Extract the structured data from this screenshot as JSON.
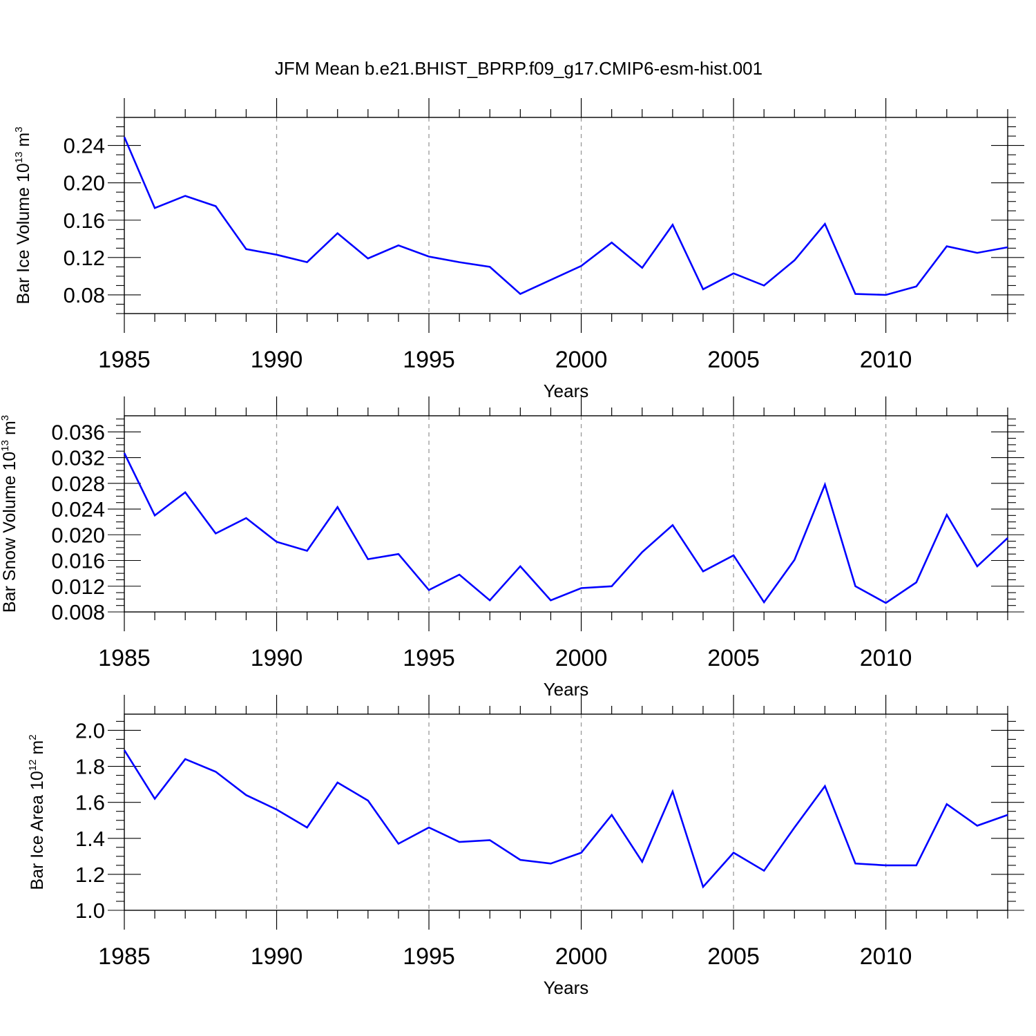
{
  "figure_title": "JFM Mean b.e21.BHIST_BPRP.f09_g17.CMIP6-esm-hist.001",
  "line_color": "#0000ff",
  "gridline_color": "#999999",
  "chart_data": [
    {
      "type": "line",
      "title": "JFM Mean b.e21.BHIST_BPRP.f09_g17.CMIP6-esm-hist.001",
      "xlabel": "Years",
      "ylabel": {
        "text": "Bar Ice Volume 10",
        "sup": "13",
        "text2": " m",
        "sup2": "3"
      },
      "xlim": [
        1985,
        2014
      ],
      "ylim": [
        0.06,
        0.27
      ],
      "xticks": [
        1985,
        1990,
        1995,
        2000,
        2005,
        2010
      ],
      "yticks": [
        "0.08",
        "0.12",
        "0.16",
        "0.20",
        "0.24"
      ],
      "grid": "vertical-dashed",
      "series": [
        {
          "x": [
            1985,
            1986,
            1987,
            1988,
            1989,
            1990,
            1991,
            1992,
            1993,
            1994,
            1995,
            1996,
            1997,
            1998,
            1999,
            2000,
            2001,
            2002,
            2003,
            2004,
            2005,
            2006,
            2007,
            2008,
            2009,
            2010,
            2011,
            2012,
            2013,
            2014
          ],
          "values": [
            0.249,
            0.173,
            0.186,
            0.175,
            0.129,
            0.123,
            0.115,
            0.146,
            0.119,
            0.133,
            0.121,
            0.115,
            0.11,
            0.081,
            0.096,
            0.111,
            0.136,
            0.109,
            0.155,
            0.086,
            0.103,
            0.09,
            0.117,
            0.156,
            0.081,
            0.08,
            0.089,
            0.132,
            0.125,
            0.131
          ]
        }
      ]
    },
    {
      "type": "line",
      "xlabel": "Years",
      "ylabel": {
        "text": "Bar Snow Volume 10",
        "sup": "13",
        "text2": " m",
        "sup2": "3"
      },
      "xlim": [
        1985,
        2014
      ],
      "ylim": [
        0.008,
        0.0385
      ],
      "xticks": [
        1985,
        1990,
        1995,
        2000,
        2005,
        2010
      ],
      "yticks": [
        "0.008",
        "0.012",
        "0.016",
        "0.020",
        "0.024",
        "0.028",
        "0.032",
        "0.036"
      ],
      "grid": "vertical-dashed",
      "series": [
        {
          "x": [
            1985,
            1986,
            1987,
            1988,
            1989,
            1990,
            1991,
            1992,
            1993,
            1994,
            1995,
            1996,
            1997,
            1998,
            1999,
            2000,
            2001,
            2002,
            2003,
            2004,
            2005,
            2006,
            2007,
            2008,
            2009,
            2010,
            2011,
            2012,
            2013,
            2014
          ],
          "values": [
            0.0327,
            0.023,
            0.0266,
            0.0202,
            0.0226,
            0.0189,
            0.0175,
            0.0243,
            0.0162,
            0.017,
            0.0114,
            0.0138,
            0.0098,
            0.0151,
            0.0098,
            0.0117,
            0.012,
            0.0173,
            0.0215,
            0.0143,
            0.0168,
            0.0095,
            0.0161,
            0.0278,
            0.012,
            0.0094,
            0.0126,
            0.0231,
            0.0151,
            0.0195
          ]
        }
      ]
    },
    {
      "type": "line",
      "xlabel": "Years",
      "ylabel": {
        "text": "Bar Ice Area 10",
        "sup": "12",
        "text2": " m",
        "sup2": "2"
      },
      "xlim": [
        1985,
        2014
      ],
      "ylim": [
        1.0,
        2.09
      ],
      "xticks": [
        1985,
        1990,
        1995,
        2000,
        2005,
        2010
      ],
      "yticks": [
        "1.0",
        "1.2",
        "1.4",
        "1.6",
        "1.8",
        "2.0"
      ],
      "grid": "vertical-dashed",
      "series": [
        {
          "x": [
            1985,
            1986,
            1987,
            1988,
            1989,
            1990,
            1991,
            1992,
            1993,
            1994,
            1995,
            1996,
            1997,
            1998,
            1999,
            2000,
            2001,
            2002,
            2003,
            2004,
            2005,
            2006,
            2007,
            2008,
            2009,
            2010,
            2011,
            2012,
            2013,
            2014
          ],
          "values": [
            1.89,
            1.62,
            1.84,
            1.77,
            1.64,
            1.56,
            1.46,
            1.71,
            1.61,
            1.37,
            1.46,
            1.38,
            1.39,
            1.28,
            1.26,
            1.32,
            1.53,
            1.27,
            1.66,
            1.13,
            1.32,
            1.22,
            1.46,
            1.69,
            1.26,
            1.25,
            1.25,
            1.59,
            1.47,
            1.53
          ]
        }
      ]
    }
  ]
}
